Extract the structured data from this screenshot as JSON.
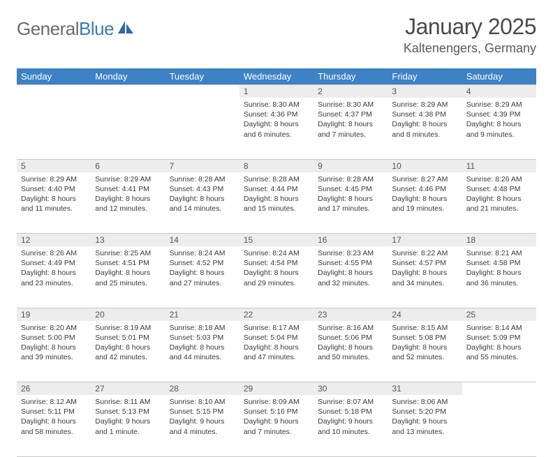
{
  "logo": {
    "word1": "General",
    "word2": "Blue"
  },
  "title": "January 2025",
  "location": "Kaltenengers, Germany",
  "colors": {
    "header_bg": "#3d82c4",
    "header_text": "#ffffff",
    "daynum_bg": "#ededed",
    "border": "#c8c8c8",
    "logo_gray": "#6b6b6b",
    "logo_blue": "#3d7ab8",
    "body_text": "#3a3a3a"
  },
  "daysOfWeek": [
    "Sunday",
    "Monday",
    "Tuesday",
    "Wednesday",
    "Thursday",
    "Friday",
    "Saturday"
  ],
  "weeks": [
    [
      null,
      null,
      null,
      {
        "n": "1",
        "sr": "8:30 AM",
        "ss": "4:36 PM",
        "dl": "8 hours and 6 minutes."
      },
      {
        "n": "2",
        "sr": "8:30 AM",
        "ss": "4:37 PM",
        "dl": "8 hours and 7 minutes."
      },
      {
        "n": "3",
        "sr": "8:29 AM",
        "ss": "4:38 PM",
        "dl": "8 hours and 8 minutes."
      },
      {
        "n": "4",
        "sr": "8:29 AM",
        "ss": "4:39 PM",
        "dl": "8 hours and 9 minutes."
      }
    ],
    [
      {
        "n": "5",
        "sr": "8:29 AM",
        "ss": "4:40 PM",
        "dl": "8 hours and 11 minutes."
      },
      {
        "n": "6",
        "sr": "8:29 AM",
        "ss": "4:41 PM",
        "dl": "8 hours and 12 minutes."
      },
      {
        "n": "7",
        "sr": "8:28 AM",
        "ss": "4:43 PM",
        "dl": "8 hours and 14 minutes."
      },
      {
        "n": "8",
        "sr": "8:28 AM",
        "ss": "4:44 PM",
        "dl": "8 hours and 15 minutes."
      },
      {
        "n": "9",
        "sr": "8:28 AM",
        "ss": "4:45 PM",
        "dl": "8 hours and 17 minutes."
      },
      {
        "n": "10",
        "sr": "8:27 AM",
        "ss": "4:46 PM",
        "dl": "8 hours and 19 minutes."
      },
      {
        "n": "11",
        "sr": "8:26 AM",
        "ss": "4:48 PM",
        "dl": "8 hours and 21 minutes."
      }
    ],
    [
      {
        "n": "12",
        "sr": "8:26 AM",
        "ss": "4:49 PM",
        "dl": "8 hours and 23 minutes."
      },
      {
        "n": "13",
        "sr": "8:25 AM",
        "ss": "4:51 PM",
        "dl": "8 hours and 25 minutes."
      },
      {
        "n": "14",
        "sr": "8:24 AM",
        "ss": "4:52 PM",
        "dl": "8 hours and 27 minutes."
      },
      {
        "n": "15",
        "sr": "8:24 AM",
        "ss": "4:54 PM",
        "dl": "8 hours and 29 minutes."
      },
      {
        "n": "16",
        "sr": "8:23 AM",
        "ss": "4:55 PM",
        "dl": "8 hours and 32 minutes."
      },
      {
        "n": "17",
        "sr": "8:22 AM",
        "ss": "4:57 PM",
        "dl": "8 hours and 34 minutes."
      },
      {
        "n": "18",
        "sr": "8:21 AM",
        "ss": "4:58 PM",
        "dl": "8 hours and 36 minutes."
      }
    ],
    [
      {
        "n": "19",
        "sr": "8:20 AM",
        "ss": "5:00 PM",
        "dl": "8 hours and 39 minutes."
      },
      {
        "n": "20",
        "sr": "8:19 AM",
        "ss": "5:01 PM",
        "dl": "8 hours and 42 minutes."
      },
      {
        "n": "21",
        "sr": "8:18 AM",
        "ss": "5:03 PM",
        "dl": "8 hours and 44 minutes."
      },
      {
        "n": "22",
        "sr": "8:17 AM",
        "ss": "5:04 PM",
        "dl": "8 hours and 47 minutes."
      },
      {
        "n": "23",
        "sr": "8:16 AM",
        "ss": "5:06 PM",
        "dl": "8 hours and 50 minutes."
      },
      {
        "n": "24",
        "sr": "8:15 AM",
        "ss": "5:08 PM",
        "dl": "8 hours and 52 minutes."
      },
      {
        "n": "25",
        "sr": "8:14 AM",
        "ss": "5:09 PM",
        "dl": "8 hours and 55 minutes."
      }
    ],
    [
      {
        "n": "26",
        "sr": "8:12 AM",
        "ss": "5:11 PM",
        "dl": "8 hours and 58 minutes."
      },
      {
        "n": "27",
        "sr": "8:11 AM",
        "ss": "5:13 PM",
        "dl": "9 hours and 1 minute."
      },
      {
        "n": "28",
        "sr": "8:10 AM",
        "ss": "5:15 PM",
        "dl": "9 hours and 4 minutes."
      },
      {
        "n": "29",
        "sr": "8:09 AM",
        "ss": "5:16 PM",
        "dl": "9 hours and 7 minutes."
      },
      {
        "n": "30",
        "sr": "8:07 AM",
        "ss": "5:18 PM",
        "dl": "9 hours and 10 minutes."
      },
      {
        "n": "31",
        "sr": "8:06 AM",
        "ss": "5:20 PM",
        "dl": "9 hours and 13 minutes."
      },
      null
    ]
  ],
  "labels": {
    "sunrise": "Sunrise:",
    "sunset": "Sunset:",
    "daylight": "Daylight:"
  }
}
